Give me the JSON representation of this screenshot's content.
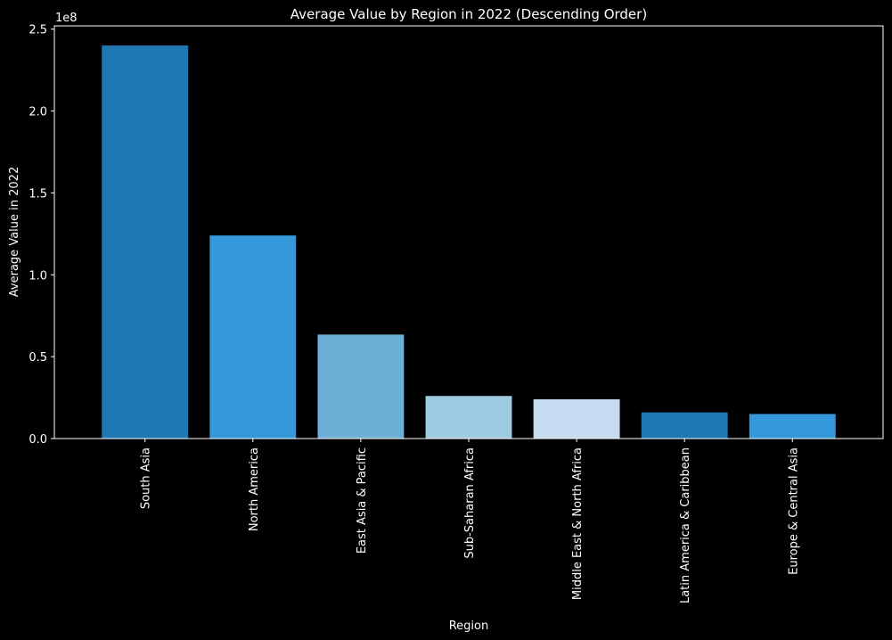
{
  "chart_data": {
    "type": "bar",
    "title": "Average Value by Region in 2022 (Descending Order)",
    "xlabel": "Region",
    "ylabel": "Average Value in 2022",
    "y_offset_label": "1e8",
    "y_scale": 100000000,
    "ylim": [
      0,
      252000000
    ],
    "yticks": [
      {
        "value": 0,
        "label": "0.0"
      },
      {
        "value": 50000000,
        "label": "0.5"
      },
      {
        "value": 100000000,
        "label": "1.0"
      },
      {
        "value": 150000000,
        "label": "1.5"
      },
      {
        "value": 200000000,
        "label": "2.0"
      },
      {
        "value": 250000000,
        "label": "2.5"
      }
    ],
    "categories": [
      "South Asia",
      "North America",
      "East Asia & Pacific",
      "Sub-Saharan Africa",
      "Middle East & North Africa",
      "Latin America & Caribbean",
      "Europe & Central Asia"
    ],
    "values": [
      240000000,
      124000000,
      63500000,
      26000000,
      24000000,
      16000000,
      15000000
    ],
    "colors": [
      "#1f77b4",
      "#3498db",
      "#6baed6",
      "#9ecae1",
      "#c6dbef",
      "#1f77b4",
      "#3498db"
    ],
    "grid": false,
    "legend": "none"
  }
}
